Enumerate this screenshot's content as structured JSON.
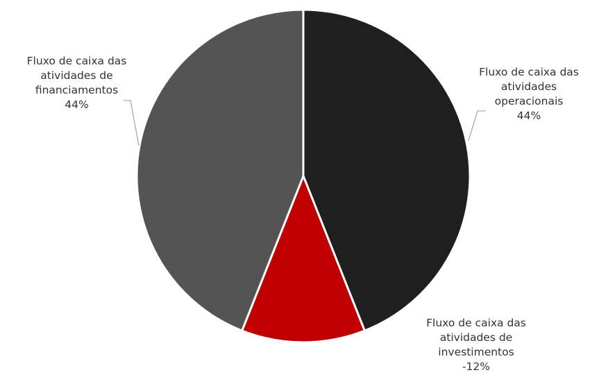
{
  "chart_data": {
    "type": "pie",
    "categories": [
      "Fluxo de caixa das atividades operacionais",
      "Fluxo de caixa das atividades de investimentos",
      "Fluxo de caixa das atividades de financiamentos"
    ],
    "values": [
      44,
      -12,
      44
    ],
    "value_labels": [
      "44%",
      "-12%",
      "44%"
    ],
    "colors": [
      "#1f1f1f",
      "#c00000",
      "#545454"
    ]
  }
}
